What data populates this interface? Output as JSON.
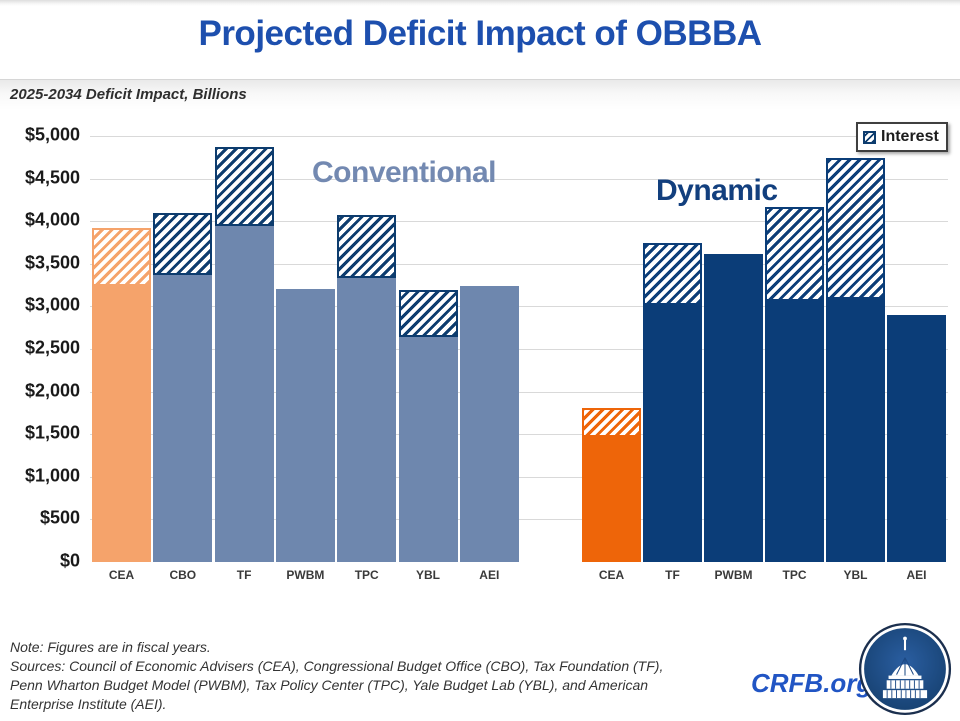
{
  "header": {
    "title": "Projected Deficit Impact of OBBBA",
    "subtitle": "2025-2034 Deficit Impact, Billions"
  },
  "legend": {
    "label": "Interest"
  },
  "footer": {
    "note": "Note: Figures are in fiscal years.",
    "sources": "Sources: Council of Economic Advisers (CEA), Congressional Budget Office (CBO), Tax Foundation (TF), Penn Wharton Budget Model (PWBM), Tax Policy Center (TPC), Yale Budget Lab (YBL), and American Enterprise Institute (AEI).",
    "site": "CRFB.org"
  },
  "chart_data": {
    "type": "bar",
    "title": "Projected Deficit Impact of OBBBA",
    "subtitle": "2025-2034 Deficit Impact, Billions",
    "units": "billions of dollars, fiscal years 2025-2034",
    "ylim": [
      0,
      5000
    ],
    "ytick_interval": 500,
    "ytick_labels": [
      "$0",
      "$500",
      "$1,000",
      "$1,500",
      "$2,000",
      "$2,500",
      "$3,000",
      "$3,500",
      "$4,000",
      "$4,500",
      "$5,000"
    ],
    "grid": true,
    "legend": [
      {
        "label": "Interest",
        "style": "diagonal-hatch-top-segment"
      }
    ],
    "colors": {
      "conventional_bar": "#6e87ae",
      "conventional_cea_bar": "#f5a36b",
      "dynamic_bar": "#0b3d78",
      "dynamic_cea_bar": "#ee6509",
      "hatch_navy": "#0d3c6e",
      "gridline": "#d9d9d9",
      "conventional_label": "#7389b1",
      "dynamic_label": "#123f7e"
    },
    "groups": [
      {
        "name": "Conventional",
        "bars": [
          {
            "label": "CEA",
            "primary": 3240,
            "total": 3920,
            "color": "#f5a36b",
            "hatch": "#f5a36b"
          },
          {
            "label": "CBO",
            "primary": 3370,
            "total": 4100,
            "color": "#6e87ae",
            "hatch": "#0d3c6e"
          },
          {
            "label": "TF",
            "primary": 3940,
            "total": 4870,
            "color": "#6e87ae",
            "hatch": "#0d3c6e"
          },
          {
            "label": "PWBM",
            "primary": 3200,
            "total": 3200,
            "color": "#6e87ae",
            "hatch": "#0d3c6e"
          },
          {
            "label": "TPC",
            "primary": 3330,
            "total": 4070,
            "color": "#6e87ae",
            "hatch": "#0d3c6e"
          },
          {
            "label": "YBL",
            "primary": 2640,
            "total": 3190,
            "color": "#6e87ae",
            "hatch": "#0d3c6e"
          },
          {
            "label": "AEI",
            "primary": 3240,
            "total": 3240,
            "color": "#6e87ae",
            "hatch": "#0d3c6e"
          }
        ]
      },
      {
        "name": "Dynamic",
        "bars": [
          {
            "label": "CEA",
            "primary": 1470,
            "total": 1810,
            "color": "#ee6509",
            "hatch": "#ee6509"
          },
          {
            "label": "TF",
            "primary": 3020,
            "total": 3740,
            "color": "#0b3d78",
            "hatch": "#0b3d78"
          },
          {
            "label": "PWBM",
            "primary": 3620,
            "total": 3620,
            "color": "#0b3d78",
            "hatch": "#0b3d78"
          },
          {
            "label": "TPC",
            "primary": 3060,
            "total": 4170,
            "color": "#0b3d78",
            "hatch": "#0b3d78"
          },
          {
            "label": "YBL",
            "primary": 3090,
            "total": 4740,
            "color": "#0b3d78",
            "hatch": "#0b3d78"
          },
          {
            "label": "AEI",
            "primary": 2900,
            "total": 2900,
            "color": "#0b3d78",
            "hatch": "#0b3d78"
          }
        ]
      }
    ]
  }
}
